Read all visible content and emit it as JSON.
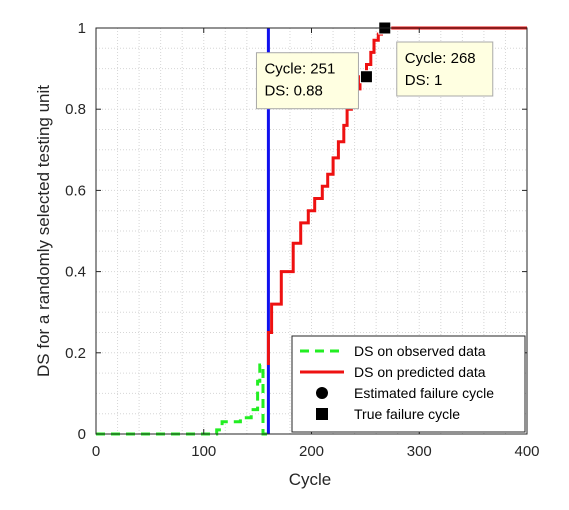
{
  "chart_data": {
    "type": "line",
    "xlabel": "Cycle",
    "ylabel": "DS for a randomly selected testing unit",
    "xlim": [
      0,
      400
    ],
    "ylim": [
      0,
      1
    ],
    "xticks": [
      0,
      100,
      200,
      300,
      400
    ],
    "yticks": [
      0,
      0.2,
      0.4,
      0.6,
      0.8,
      1
    ],
    "xtick_labels": [
      "0",
      "100",
      "200",
      "300",
      "400"
    ],
    "ytick_labels": [
      "0",
      "0.2",
      "0.4",
      "0.6",
      "0.8",
      "1"
    ],
    "grid": "dotted",
    "legend_position": "bottom-right",
    "series": [
      {
        "name": "DS on observed data",
        "style": "dashed",
        "color": "#22ee22",
        "x": [
          0,
          112,
          112,
          117,
          117,
          134,
          134,
          144,
          144,
          150,
          150,
          152,
          152,
          155,
          155,
          160
        ],
        "y": [
          0,
          0,
          0.01,
          0.01,
          0.03,
          0.03,
          0.04,
          0.04,
          0.06,
          0.06,
          0.13,
          0.13,
          0.17,
          0.17,
          0.0,
          0.0
        ]
      },
      {
        "name": "DS on predicted data",
        "style": "solid",
        "color": "#ee1111",
        "x": [
          160,
          160,
          163,
          163,
          172,
          172,
          183,
          183,
          190,
          190,
          197,
          197,
          203,
          203,
          210,
          210,
          215,
          215,
          220,
          220,
          225,
          225,
          230,
          230,
          233,
          233,
          237,
          237,
          240,
          240,
          245,
          245,
          251,
          251,
          255,
          255,
          258,
          258,
          262,
          262,
          265,
          265,
          268,
          268,
          400
        ],
        "y": [
          0.17,
          0.25,
          0.25,
          0.32,
          0.32,
          0.4,
          0.4,
          0.47,
          0.47,
          0.52,
          0.52,
          0.55,
          0.55,
          0.58,
          0.58,
          0.61,
          0.61,
          0.64,
          0.64,
          0.68,
          0.68,
          0.72,
          0.72,
          0.76,
          0.76,
          0.8,
          0.8,
          0.83,
          0.83,
          0.85,
          0.85,
          0.88,
          0.88,
          0.91,
          0.91,
          0.94,
          0.94,
          0.97,
          0.97,
          0.985,
          0.985,
          1.0,
          1.0,
          1.0,
          1.0
        ]
      }
    ],
    "vertical_line": {
      "x": 160,
      "color": "#1010ee"
    },
    "markers": [
      {
        "name": "Estimated failure cycle",
        "shape": "circle",
        "x": 268,
        "y": 1
      },
      {
        "name": "True failure cycle",
        "shape": "square",
        "x": 268,
        "y": 1
      },
      {
        "name": "True failure cycle",
        "shape": "square",
        "x": 251,
        "y": 0.88
      }
    ],
    "legend": [
      {
        "label": "DS on observed data",
        "kind": "dashed-line",
        "color": "#22ee22"
      },
      {
        "label": "DS on predicted data",
        "kind": "solid-line",
        "color": "#ee1111"
      },
      {
        "label": "Estimated failure cycle",
        "kind": "circle",
        "color": "#000000"
      },
      {
        "label": "True failure cycle",
        "kind": "square",
        "color": "#000000"
      }
    ],
    "annotations": [
      {
        "x": 251,
        "y": 0.88,
        "lines": [
          "Cycle: 251",
          "DS: 0.88"
        ]
      },
      {
        "x": 268,
        "y": 1,
        "lines": [
          "Cycle: 268",
          "DS: 1"
        ]
      }
    ]
  }
}
